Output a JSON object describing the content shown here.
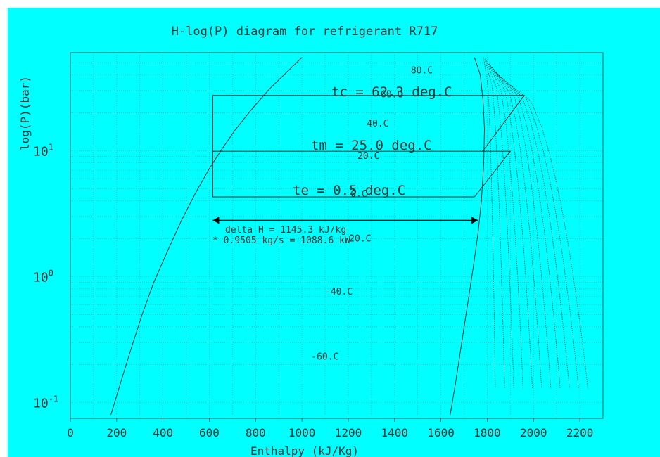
{
  "chart_data": {
    "type": "line",
    "title": "H-log(P) diagram for refrigerant R717",
    "xlabel": "Enthalpy (kJ/Kg)",
    "ylabel": "log(P)(bar)",
    "x_ticks": [
      "0",
      "200",
      "400",
      "600",
      "800",
      "1000",
      "1200",
      "1400",
      "1600",
      "1800",
      "2000",
      "2200"
    ],
    "y_ticks": [
      {
        "base": "10",
        "exp": "-1",
        "value": 0.1
      },
      {
        "base": "10",
        "exp": "0",
        "value": 1
      },
      {
        "base": "10",
        "exp": "1",
        "value": 10
      }
    ],
    "xlim": [
      0,
      2300
    ],
    "ylim": [
      0.075,
      60
    ],
    "y_scale": "log",
    "grid": true,
    "temperature_labels": [
      {
        "text": "80.C",
        "h": 1470,
        "p": 41
      },
      {
        "text": "60.C",
        "h": 1340,
        "p": 26.5
      },
      {
        "text": "40.C",
        "h": 1280,
        "p": 15.6
      },
      {
        "text": "20.C",
        "h": 1240,
        "p": 8.6
      },
      {
        "text": "0.C",
        "h": 1210,
        "p": 4.3
      },
      {
        "text": "-20.C",
        "h": 1180,
        "p": 1.9
      },
      {
        "text": "-40.C",
        "h": 1100,
        "p": 0.72
      },
      {
        "text": "-60.C",
        "h": 1040,
        "p": 0.22
      }
    ],
    "annotations": {
      "tc": "tc =  62.3 deg.C",
      "tm": "tm =  25.0 deg.C",
      "te": "te =   0.5 deg.C",
      "delta_line1": "delta H = 1145.3 kJ/kg",
      "delta_line2": "* 0.9505 kg/s = 1088.6 kW"
    },
    "series": [
      {
        "role": "saturated liquid",
        "x": [
          175,
          215,
          260,
          310,
          360,
          420,
          480,
          540,
          600,
          650,
          710,
          780,
          860,
          940,
          1000
        ],
        "y": [
          0.08,
          0.14,
          0.26,
          0.5,
          0.9,
          1.6,
          2.8,
          4.6,
          7.2,
          10,
          14.5,
          21,
          31,
          43,
          55
        ]
      },
      {
        "role": "saturated vapor",
        "x": [
          1640,
          1665,
          1690,
          1715,
          1740,
          1760,
          1775,
          1785,
          1788,
          1782,
          1770,
          1745
        ],
        "y": [
          0.08,
          0.15,
          0.3,
          0.6,
          1.2,
          2.2,
          4.0,
          8.0,
          15.0,
          25.0,
          40.0,
          55.0
        ]
      },
      {
        "role": "cycle",
        "x": [
          1745,
          1900,
          1780,
          1960,
          1780,
          615,
          615,
          1745
        ],
        "y": [
          4.3,
          9.9,
          9.9,
          27.5,
          27.5,
          27.5,
          4.3,
          4.3
        ]
      },
      {
        "role": "cycle",
        "x": [
          615,
          1780
        ],
        "y": [
          9.9,
          9.9
        ]
      },
      {
        "role": "delta-H arrow",
        "x": [
          615,
          1760
        ],
        "y": [
          2.8,
          2.8
        ]
      }
    ],
    "isotherm_end_enthalpy": [
      1835,
      1875,
      1915,
      1955,
      1995,
      2035,
      2075,
      2115,
      2155,
      2195,
      2235
    ]
  }
}
